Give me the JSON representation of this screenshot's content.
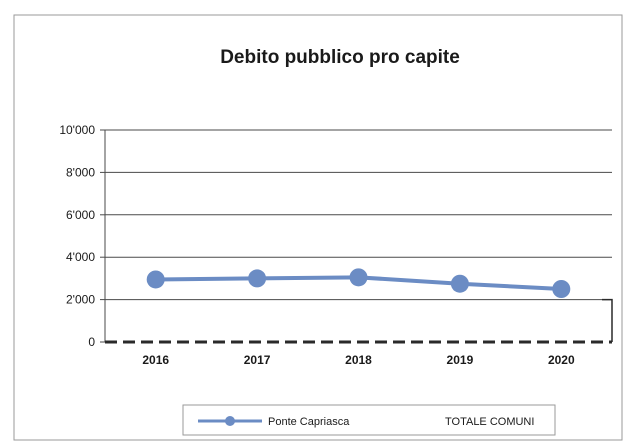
{
  "chart_data": {
    "type": "line",
    "title": "Debito pubblico pro capite",
    "xlabel": "",
    "ylabel": "",
    "categories": [
      "2016",
      "2017",
      "2018",
      "2019",
      "2020"
    ],
    "ylim": [
      0,
      10000
    ],
    "yticks": [
      0,
      2000,
      4000,
      6000,
      8000,
      10000
    ],
    "ytick_labels": [
      "0",
      "2'000",
      "4'000",
      "6'000",
      "8'000",
      "10'000"
    ],
    "grid": true,
    "legend_position": "bottom",
    "series": [
      {
        "name": "Ponte Capriasca",
        "values": [
          2950,
          3000,
          3050,
          2750,
          2500
        ],
        "color": "#6b8cc4",
        "style": "solid-with-markers"
      },
      {
        "name": "TOTALE COMUNI",
        "values": [
          0,
          0,
          0,
          0,
          0
        ],
        "color": "#2a2a2a",
        "style": "dashed"
      }
    ]
  }
}
